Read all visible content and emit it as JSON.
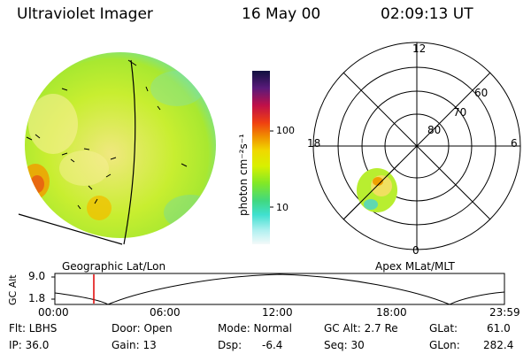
{
  "header": {
    "title": "Ultraviolet Imager",
    "date": "16 May 00",
    "time": "02:09:13 UT"
  },
  "colorbar": {
    "label": "photon cm⁻²s⁻¹",
    "ticks": [
      "100",
      "10"
    ],
    "colors_top_to_bottom": [
      "#1a0a3a",
      "#3a1a6a",
      "#7a2a9a",
      "#c0104a",
      "#e02020",
      "#f07000",
      "#f0a000",
      "#f0d800",
      "#e8f000",
      "#b0ee10",
      "#60e040",
      "#30d890",
      "#40e0d0",
      "#a0f0f0",
      "#e8f8f8"
    ]
  },
  "polar_plot": {
    "mlt_labels": [
      "12",
      "18",
      "6",
      "0"
    ],
    "lat_labels": [
      "60",
      "70",
      "80"
    ]
  },
  "projection_labels": {
    "left": "Geographic Lat/Lon",
    "right": "Apex MLat/MLT"
  },
  "altitude_plot": {
    "ylabel": "GC Alt",
    "y_ticks": [
      "9.0",
      "1.8"
    ],
    "x_ticks": [
      "00:00",
      "06:00",
      "12:00",
      "18:00",
      "23:59"
    ],
    "marker_color": "#e00000"
  },
  "info": {
    "filter": "Flt: LBHS",
    "ip": "IP: 36.0",
    "door": "Door: Open",
    "gain": "Gain: 13",
    "mode": "Mode: Normal",
    "dsp": "Dsp:",
    "dsp_value": "-6.4",
    "gc_alt": "GC Alt: 2.7 Re",
    "seq": "Seq: 30",
    "glat": "GLat:",
    "glat_value": "61.0",
    "glon": "GLon:",
    "glon_value": "282.4"
  }
}
